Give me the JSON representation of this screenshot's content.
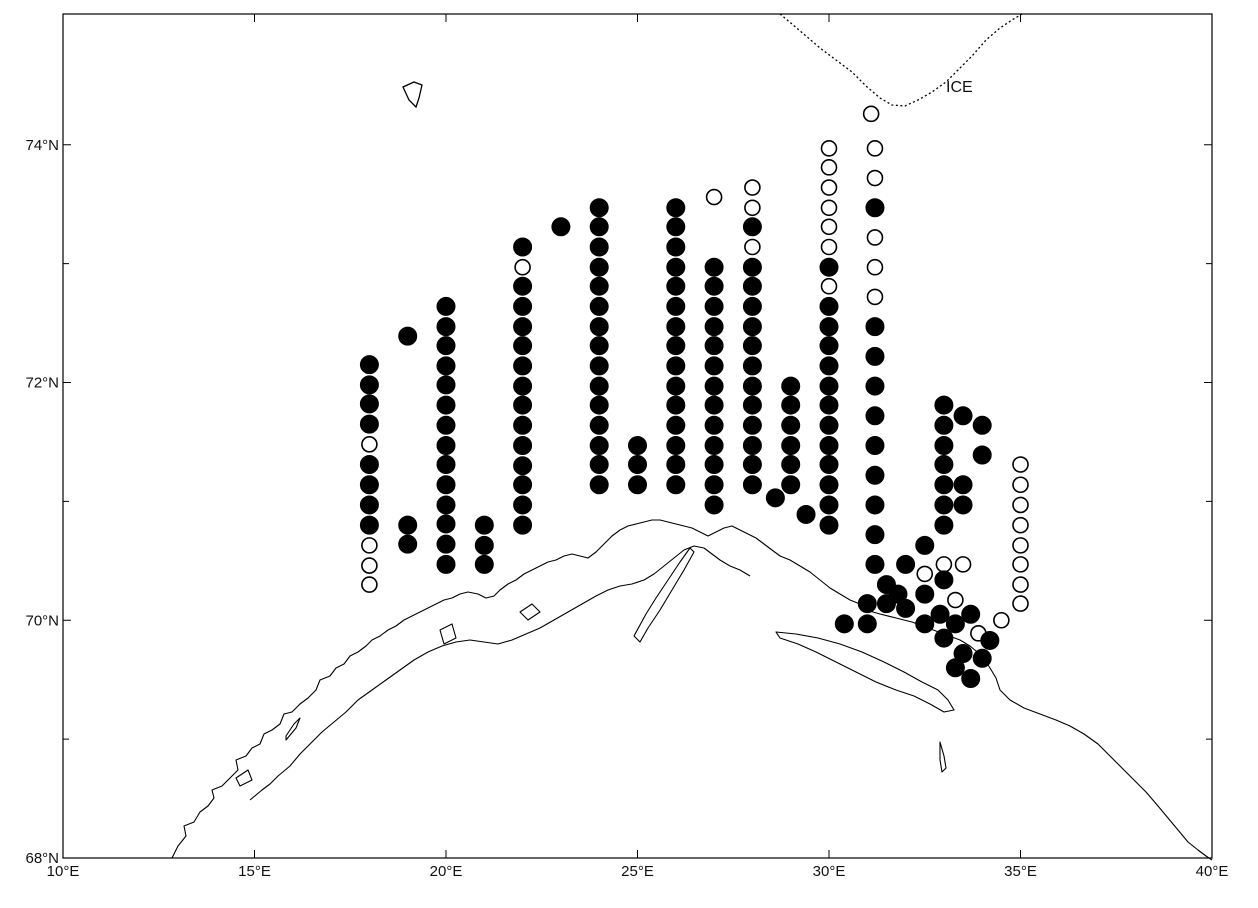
{
  "map": {
    "x_ticks": [
      {
        "lon": 10,
        "label": "10°E"
      },
      {
        "lon": 15,
        "label": "15°E"
      },
      {
        "lon": 20,
        "label": "20°E"
      },
      {
        "lon": 25,
        "label": "25°E"
      },
      {
        "lon": 30,
        "label": "30°E"
      },
      {
        "lon": 35,
        "label": "35°E"
      },
      {
        "lon": 40,
        "label": "40°E"
      }
    ],
    "y_ticks": [
      {
        "lat": 68,
        "label": "68°N"
      },
      {
        "lat": 70,
        "label": "70°N"
      },
      {
        "lat": 72,
        "label": "72°N"
      },
      {
        "lat": 74,
        "label": "74°N"
      }
    ],
    "extent": {
      "lon": [
        10,
        40
      ],
      "lat": [
        68,
        75.1
      ]
    },
    "ice_label": "ICE",
    "marker_colors": {
      "filled": "#000000",
      "open": "#ffffff"
    },
    "stations": [
      {
        "lon": 18.0,
        "lats": [
          72.15,
          71.98,
          71.82,
          71.65,
          71.48,
          71.31,
          71.14,
          70.97,
          70.8,
          70.63,
          70.46,
          70.3
        ],
        "open": [
          71.48,
          70.63,
          70.46,
          70.3
        ]
      },
      {
        "lon": 19.0,
        "lats": [
          72.39,
          70.8,
          70.64
        ],
        "open": []
      },
      {
        "lon": 20.0,
        "lats": [
          72.64,
          72.47,
          72.31,
          72.14,
          71.98,
          71.81,
          71.64,
          71.47,
          71.31,
          71.14,
          70.97,
          70.81,
          70.64,
          70.47
        ],
        "open": []
      },
      {
        "lon": 21.0,
        "lats": [
          70.8,
          70.63,
          70.47
        ],
        "open": []
      },
      {
        "lon": 22.0,
        "lats": [
          73.14,
          72.97,
          72.81,
          72.64,
          72.47,
          72.31,
          72.14,
          71.97,
          71.81,
          71.64,
          71.47,
          71.3,
          71.14,
          70.97,
          70.8
        ],
        "open": [
          72.97
        ]
      },
      {
        "lon": 23.0,
        "lats": [
          73.31
        ],
        "open": []
      },
      {
        "lon": 24.0,
        "lats": [
          73.47,
          73.31,
          73.14,
          72.97,
          72.81,
          72.64,
          72.47,
          72.31,
          72.14,
          71.97,
          71.81,
          71.64,
          71.47,
          71.31,
          71.14
        ],
        "open": []
      },
      {
        "lon": 25.0,
        "lats": [
          71.47,
          71.31,
          71.14
        ],
        "open": []
      },
      {
        "lon": 26.0,
        "lats": [
          73.47,
          73.31,
          73.14,
          72.97,
          72.81,
          72.64,
          72.47,
          72.31,
          72.14,
          71.97,
          71.81,
          71.64,
          71.47,
          71.31,
          71.14
        ],
        "open": []
      },
      {
        "lon": 27.0,
        "lats": [
          73.56,
          72.97,
          72.81,
          72.64,
          72.47,
          72.31,
          72.14,
          71.97,
          71.81,
          71.64,
          71.47,
          71.31,
          71.14,
          70.97
        ],
        "open": [
          73.56
        ]
      },
      {
        "lon": 28.0,
        "lats": [
          73.64,
          73.47,
          73.31,
          73.14,
          72.97,
          72.81,
          72.64,
          72.47,
          72.31,
          72.14,
          71.97,
          71.81,
          71.64,
          71.47,
          71.31,
          71.14
        ],
        "open": [
          73.64,
          73.47,
          73.14
        ]
      },
      {
        "lon": 28.6,
        "lats": [
          71.03
        ],
        "open": []
      },
      {
        "lon": 29.0,
        "lats": [
          71.97,
          71.81,
          71.64,
          71.47,
          71.31,
          71.14
        ],
        "open": []
      },
      {
        "lon": 29.4,
        "lats": [
          70.89
        ],
        "open": []
      },
      {
        "lon": 30.0,
        "lats": [
          73.97,
          73.81,
          73.64,
          73.47,
          73.31,
          73.14,
          72.97,
          72.81,
          72.64,
          72.47,
          72.31,
          72.14,
          71.97,
          71.81,
          71.64,
          71.47,
          71.31,
          71.14,
          70.97,
          70.8
        ],
        "open": [
          73.97,
          73.81,
          73.64,
          73.47,
          73.31,
          73.14,
          72.81
        ]
      },
      {
        "lon": 31.1,
        "lats": [
          74.26
        ],
        "open": [
          74.26
        ]
      },
      {
        "lon": 31.2,
        "lats": [
          73.97,
          73.72,
          73.47,
          73.22,
          72.97,
          72.72,
          72.47,
          72.22,
          71.97,
          71.72,
          71.47,
          71.22,
          70.97,
          70.72,
          70.47
        ],
        "open": [
          73.97,
          73.72,
          73.22,
          72.97,
          72.72
        ]
      },
      {
        "lon": 33.0,
        "lats": [
          71.81,
          71.64,
          71.47,
          71.31,
          71.14,
          70.97,
          70.8
        ],
        "open": []
      },
      {
        "lon": 33.5,
        "lats": [
          71.72,
          71.14,
          70.97
        ],
        "open": []
      },
      {
        "lon": 34.0,
        "lats": [
          71.64,
          71.39
        ],
        "open": []
      },
      {
        "lon": 35.0,
        "lats": [
          71.31,
          71.14,
          70.97,
          70.8,
          70.63,
          70.47,
          70.3,
          70.14
        ],
        "open": [
          71.31,
          71.14,
          70.97,
          70.8,
          70.63,
          70.47,
          70.3,
          70.14
        ]
      },
      {
        "lon": 30.4,
        "lats": [
          69.97
        ],
        "open": []
      },
      {
        "lon": 31.0,
        "lats": [
          70.14,
          69.97
        ],
        "open": []
      },
      {
        "lon": 31.5,
        "lats": [
          70.3,
          70.14
        ],
        "open": []
      },
      {
        "lon": 31.8,
        "lats": [
          70.22
        ],
        "open": []
      },
      {
        "lon": 32.0,
        "lats": [
          70.47,
          70.1
        ],
        "open": []
      },
      {
        "lon": 32.5,
        "lats": [
          70.63,
          70.39,
          70.22,
          69.97
        ],
        "open": [
          70.39
        ]
      },
      {
        "lon": 32.9,
        "lats": [
          70.05
        ],
        "open": []
      },
      {
        "lon": 33.0,
        "lats": [
          70.47,
          70.34,
          69.85
        ],
        "open": [
          70.47
        ]
      },
      {
        "lon": 33.3,
        "lats": [
          70.17,
          69.97,
          69.6
        ],
        "open": [
          70.17
        ]
      },
      {
        "lon": 33.5,
        "lats": [
          70.47,
          69.72
        ],
        "open": [
          70.47
        ]
      },
      {
        "lon": 33.7,
        "lats": [
          70.05,
          69.51
        ],
        "open": []
      },
      {
        "lon": 33.9,
        "lats": [
          69.89
        ],
        "open": [
          69.89
        ]
      },
      {
        "lon": 34.0,
        "lats": [
          69.68
        ],
        "open": []
      },
      {
        "lon": 34.2,
        "lats": [
          69.83
        ],
        "open": []
      },
      {
        "lon": 34.5,
        "lats": [
          70.0
        ],
        "open": [
          70.0
        ]
      }
    ]
  }
}
